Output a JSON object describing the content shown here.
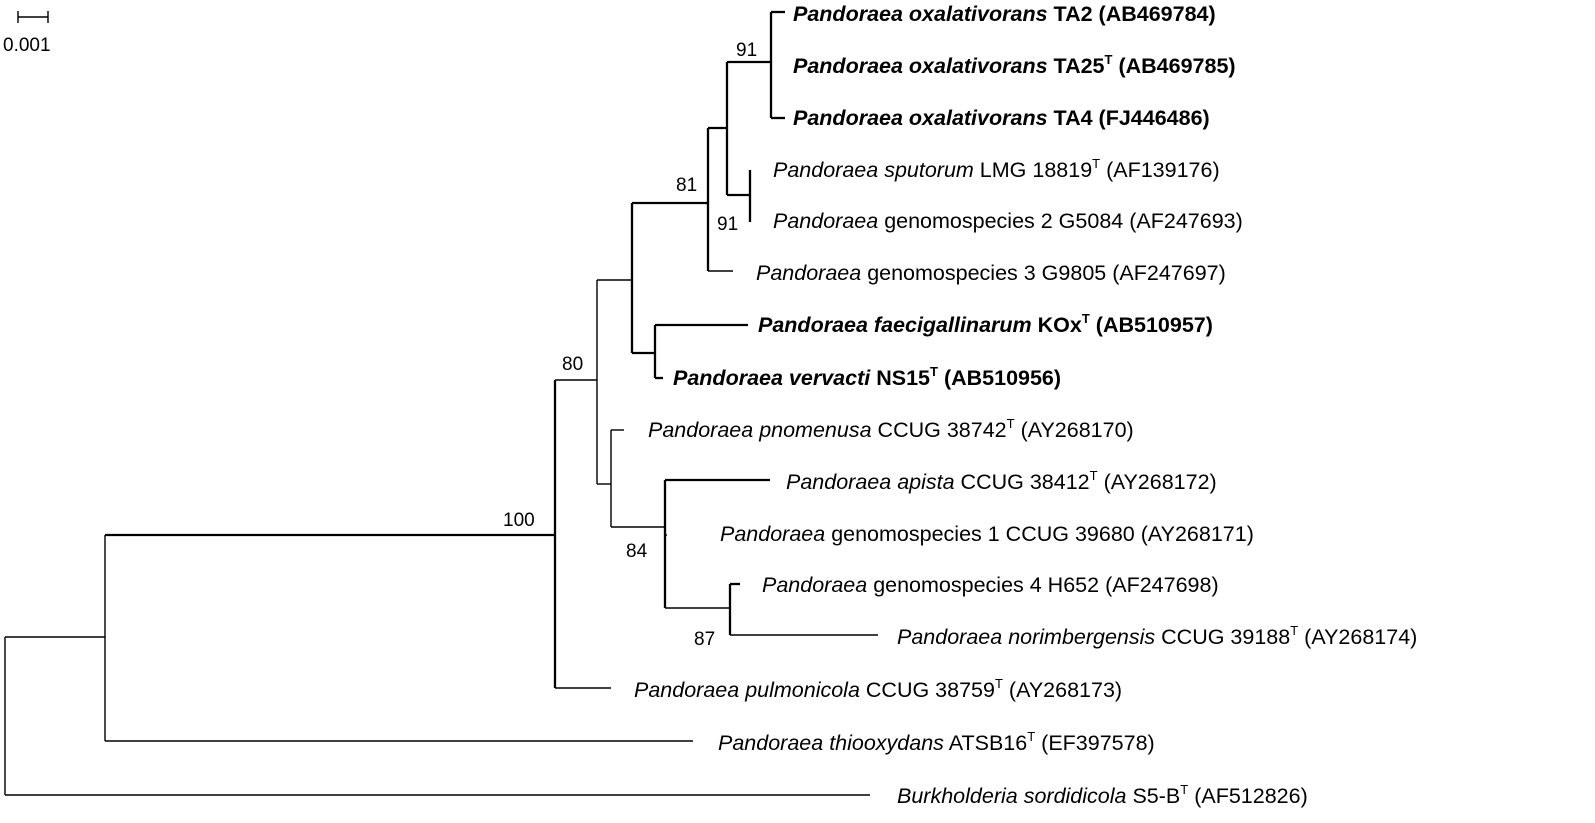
{
  "scale_bar": {
    "label": "0.001"
  },
  "taxa": [
    {
      "genus": "Pandoraea",
      "epithet": "oxalativorans",
      "strain": "TA2",
      "type_strain": false,
      "accession": "(AB469784)",
      "bold": true
    },
    {
      "genus": "Pandoraea",
      "epithet": "oxalativorans",
      "strain": "TA25",
      "type_strain": true,
      "accession": "(AB469785)",
      "bold": true
    },
    {
      "genus": "Pandoraea",
      "epithet": "oxalativorans",
      "strain": "TA4",
      "type_strain": false,
      "accession": "(FJ446486)",
      "bold": true
    },
    {
      "genus": "Pandoraea",
      "epithet": "sputorum",
      "strain": "LMG 18819",
      "type_strain": true,
      "accession": "(AF139176)",
      "bold": false
    },
    {
      "genus": "Pandoraea",
      "epithet": "",
      "strain": "genomospecies 2 G5084",
      "type_strain": false,
      "accession": "(AF247693)",
      "bold": false
    },
    {
      "genus": "Pandoraea",
      "epithet": "",
      "strain": "genomospecies 3 G9805",
      "type_strain": false,
      "accession": "(AF247697)",
      "bold": false
    },
    {
      "genus": "Pandoraea",
      "epithet": "faecigallinarum",
      "strain": "KOx",
      "type_strain": true,
      "accession": "(AB510957)",
      "bold": true
    },
    {
      "genus": "Pandoraea",
      "epithet": "vervacti",
      "strain": "NS15",
      "type_strain": true,
      "accession": "(AB510956)",
      "bold": true
    },
    {
      "genus": "Pandoraea",
      "epithet": "pnomenusa",
      "strain": "CCUG 38742",
      "type_strain": true,
      "accession": "(AY268170)",
      "bold": false
    },
    {
      "genus": "Pandoraea",
      "epithet": "apista",
      "strain": "CCUG 38412",
      "type_strain": true,
      "accession": "(AY268172)",
      "bold": false
    },
    {
      "genus": "Pandoraea",
      "epithet": "",
      "strain": "genomospecies 1 CCUG 39680",
      "type_strain": false,
      "accession": "(AY268171)",
      "bold": false
    },
    {
      "genus": "Pandoraea",
      "epithet": "",
      "strain": "genomospecies 4 H652",
      "type_strain": false,
      "accession": "(AF247698)",
      "bold": false
    },
    {
      "genus": "Pandoraea",
      "epithet": "norimbergensis",
      "strain": "CCUG 39188",
      "type_strain": true,
      "accession": "(AY268174)",
      "bold": false
    },
    {
      "genus": "Pandoraea",
      "epithet": "pulmonicola",
      "strain": "CCUG 38759",
      "type_strain": true,
      "accession": "(AY268173)",
      "bold": false
    },
    {
      "genus": "Pandoraea",
      "epithet": "thiooxydans",
      "strain": "ATSB16",
      "type_strain": true,
      "accession": "(EF397578)",
      "bold": false
    },
    {
      "genus": "Burkholderia",
      "epithet": "sordidicola",
      "strain": "S5-B",
      "type_strain": true,
      "accession": "(AF512826)",
      "bold": false
    }
  ],
  "type_mark": "T",
  "bootstrap": [
    "100",
    "80",
    "81",
    "91",
    "91",
    "84",
    "87"
  ]
}
